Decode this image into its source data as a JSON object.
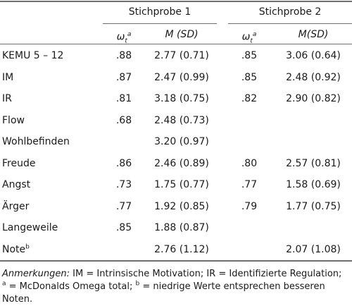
{
  "header": {
    "group1": "Stichprobe 1",
    "group2": "Stichprobe 2",
    "omega_main": "ω",
    "omega_sub": "t",
    "omega_sup": "a",
    "msd1": "M (SD)",
    "msd2": "M(SD)"
  },
  "rows": [
    {
      "label": "KEMU 5 – 12",
      "om1": ".88",
      "m1": "2.77 (0.71)",
      "om2": ".85",
      "m2": "3.06 (0.64)"
    },
    {
      "label": "IM",
      "om1": ".87",
      "m1": "2.47 (0.99)",
      "om2": ".85",
      "m2": "2.48 (0.92)"
    },
    {
      "label": "IR",
      "om1": ".81",
      "m1": "3.18 (0.75)",
      "om2": ".82",
      "m2": "2.90 (0.82)"
    },
    {
      "label": "Flow",
      "om1": ".68",
      "m1": "2.48 (0.73)",
      "om2": "",
      "m2": ""
    },
    {
      "label": "Wohlbefinden",
      "om1": "",
      "m1": "3.20 (0.97)",
      "om2": "",
      "m2": ""
    },
    {
      "label": "Freude",
      "om1": ".86",
      "m1": "2.46 (0.89)",
      "om2": ".80",
      "m2": "2.57 (0.81)"
    },
    {
      "label": "Angst",
      "om1": ".73",
      "m1": "1.75 (0.77)",
      "om2": ".77",
      "m2": "1.58 (0.69)"
    },
    {
      "label": "Ärger",
      "om1": ".77",
      "m1": "1.92 (0.85)",
      "om2": ".79",
      "m2": "1.77 (0.75)"
    },
    {
      "label": "Langeweile",
      "om1": ".85",
      "m1": "1.88 (0.87)",
      "om2": "",
      "m2": ""
    },
    {
      "label": "Note",
      "label_sup": "b",
      "om1": "",
      "m1": "2.76 (1.12)",
      "om2": "",
      "m2": "2.07 (1.08)"
    }
  ],
  "notes": {
    "prefix": "Anmerkungen:",
    "line1": " IM = Intrinsische Motivation; IR = Identifizierte Regulation;",
    "sup_a": "a",
    "line2a": " = McDonalds Omega total; ",
    "sup_b": "b",
    "line2b": " = niedrige Werte entsprechen besseren Noten."
  }
}
